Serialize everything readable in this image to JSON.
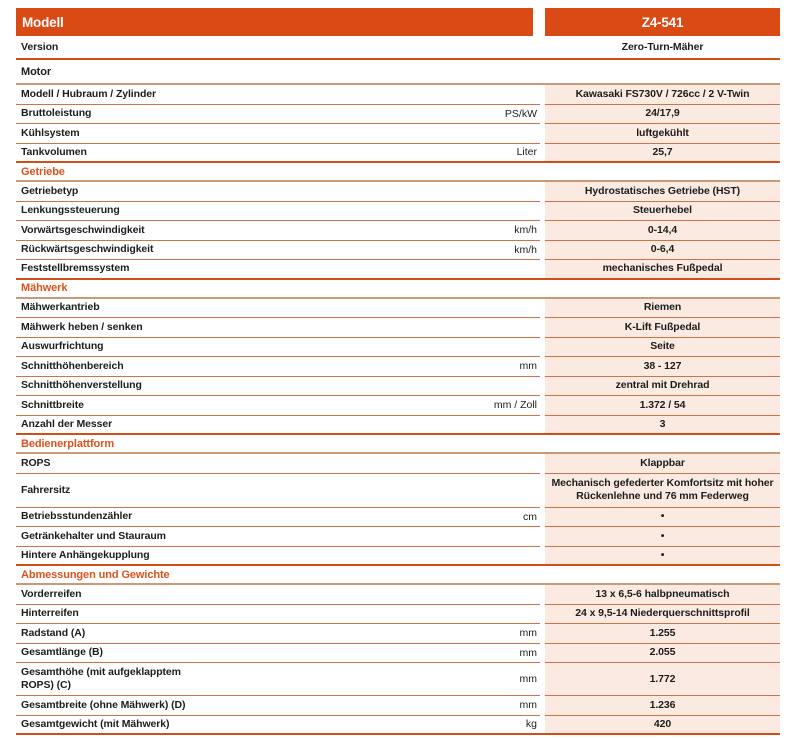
{
  "header": {
    "left": "Modell",
    "right": "Z4-541"
  },
  "theme": {
    "accent": "#d94a15",
    "accent_text": "#d9531b",
    "thin_divider": "#cd7447",
    "strong_divider": "#d14e15",
    "section_divider": "#c99a78",
    "shade_bg": "#faeae1",
    "text": "#1d1d1b"
  },
  "rows": [
    {
      "type": "data",
      "label": "Version",
      "unit": "",
      "value": "Zero-Turn-Mäher",
      "shaded": false,
      "h": 23
    },
    {
      "type": "section",
      "label": "Motor",
      "variant": "dark",
      "h": 25
    },
    {
      "type": "data",
      "label": "Modell / Hubraum / Zylinder",
      "unit": "",
      "value": "Kawasaki FS730V / 726cc / 2 V-Twin",
      "shaded": true
    },
    {
      "type": "data",
      "label": "Bruttoleistung",
      "unit": "PS/kW",
      "value": "24/17,9",
      "shaded": true
    },
    {
      "type": "data",
      "label": "Kühlsystem",
      "unit": "",
      "value": "luftgekühlt",
      "shaded": true
    },
    {
      "type": "data",
      "label": "Tankvolumen",
      "unit": "Liter",
      "value": "25,7",
      "shaded": true
    },
    {
      "type": "section",
      "label": "Getriebe",
      "variant": "accent"
    },
    {
      "type": "data",
      "label": "Getriebetyp",
      "unit": "",
      "value": "Hydrostatisches Getriebe (HST)",
      "shaded": true
    },
    {
      "type": "data",
      "label": "Lenkungssteuerung",
      "unit": "",
      "value": "Steuerhebel",
      "shaded": true
    },
    {
      "type": "data",
      "label": "Vorwärtsgeschwindigkeit",
      "unit": "km/h",
      "value": "0-14,4",
      "shaded": true
    },
    {
      "type": "data",
      "label": "Rückwärtsgeschwindigkeit",
      "unit": "km/h",
      "value": "0-6,4",
      "shaded": true
    },
    {
      "type": "data",
      "label": "Feststellbremssystem",
      "unit": "",
      "value": "mechanisches Fußpedal",
      "shaded": true
    },
    {
      "type": "section",
      "label": "Mähwerk",
      "variant": "accent"
    },
    {
      "type": "data",
      "label": "Mähwerkantrieb",
      "unit": "",
      "value": "Riemen",
      "shaded": true
    },
    {
      "type": "data",
      "label": "Mähwerk heben / senken",
      "unit": "",
      "value": "K-Lift Fußpedal",
      "shaded": true
    },
    {
      "type": "data",
      "label": "Auswurfrichtung",
      "unit": "",
      "value": "Seite",
      "shaded": true
    },
    {
      "type": "data",
      "label": "Schnitthöhenbereich",
      "unit": "mm",
      "value": "38 - 127",
      "shaded": true
    },
    {
      "type": "data",
      "label": "Schnitthöhenverstellung",
      "unit": "",
      "value": "zentral mit Drehrad",
      "shaded": true
    },
    {
      "type": "data",
      "label": "Schnittbreite",
      "unit": "mm / Zoll",
      "value": "1.372 / 54",
      "shaded": true
    },
    {
      "type": "data",
      "label": "Anzahl der Messer",
      "unit": "",
      "value": "3",
      "shaded": true
    },
    {
      "type": "section",
      "label": "Bedienerplattform",
      "variant": "accent"
    },
    {
      "type": "data",
      "label": "ROPS",
      "unit": "",
      "value": "Klappbar",
      "shaded": true
    },
    {
      "type": "data",
      "label": "Fahrersitz",
      "unit": "",
      "value": "Mechanisch gefederter Komfortsitz mit hoher\nRückenlehne und 76 mm Federweg",
      "shaded": true,
      "h": 34
    },
    {
      "type": "data",
      "label": "Betriebsstundenzähler",
      "unit": "cm",
      "value": "•",
      "shaded": true
    },
    {
      "type": "data",
      "label": "Getränkehalter und Stauraum",
      "unit": "",
      "value": "•",
      "shaded": true
    },
    {
      "type": "data",
      "label": "Hintere Anhängekupplung",
      "unit": "",
      "value": "•",
      "shaded": true
    },
    {
      "type": "section",
      "label": "Abmessungen und Gewichte",
      "variant": "accent"
    },
    {
      "type": "data",
      "label": "Vorderreifen",
      "unit": "",
      "value": "13 x 6,5-6 halbpneumatisch",
      "shaded": true
    },
    {
      "type": "data",
      "label": "Hinterreifen",
      "unit": "",
      "value": "24 x 9,5-14 Niederquerschnittsprofil",
      "shaded": true
    },
    {
      "type": "data",
      "label": "Radstand (A)",
      "unit": "mm",
      "value": "1.255",
      "shaded": true
    },
    {
      "type": "data",
      "label": "Gesamtlänge (B)",
      "unit": "mm",
      "value": "2.055",
      "shaded": true
    },
    {
      "type": "data",
      "label": "Gesamthöhe (mit aufgeklapptem\nROPS) (C)",
      "unit": "mm",
      "value": "1.772",
      "shaded": true,
      "h": 33
    },
    {
      "type": "data",
      "label": "Gesamtbreite (ohne Mähwerk) (D)",
      "unit": "mm",
      "value": "1.236",
      "shaded": true
    },
    {
      "type": "data",
      "label": "Gesamtgewicht (mit Mähwerk)",
      "unit": "kg",
      "value": "420",
      "shaded": true
    }
  ]
}
